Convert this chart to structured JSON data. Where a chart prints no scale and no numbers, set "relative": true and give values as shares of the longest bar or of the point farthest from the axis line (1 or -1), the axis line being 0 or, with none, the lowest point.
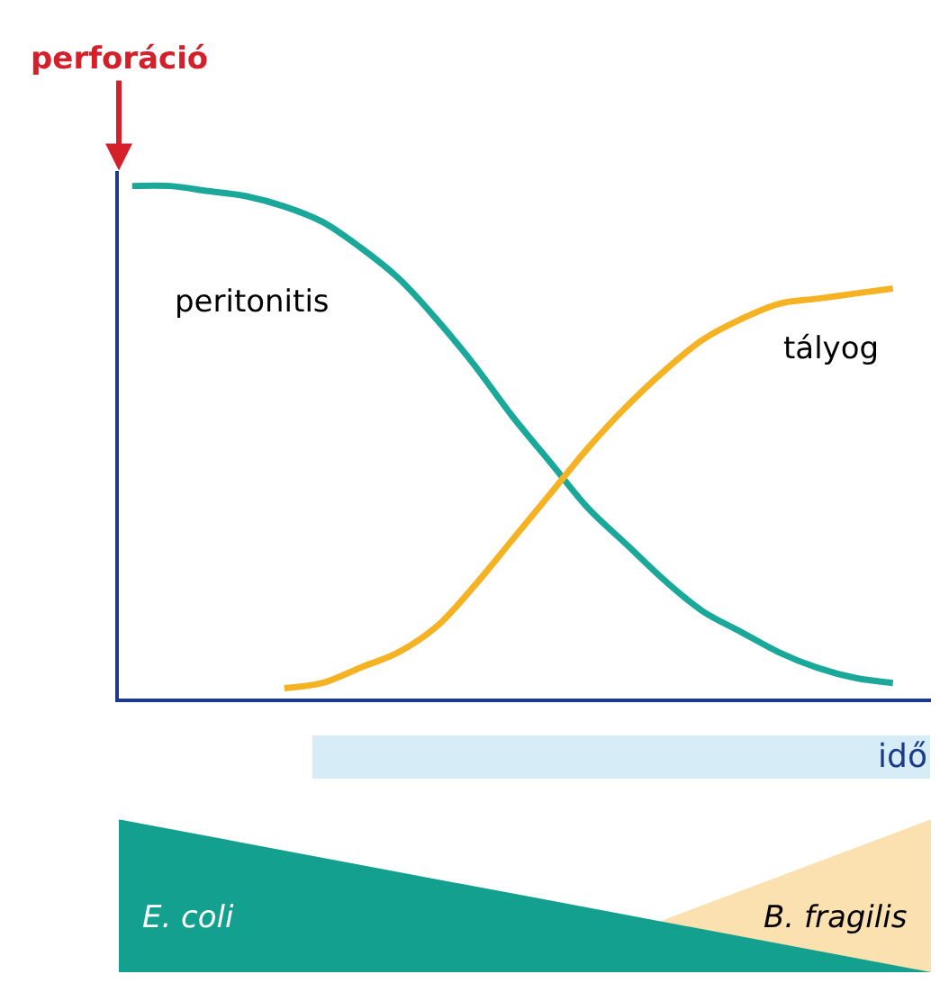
{
  "chart_data": [
    {
      "type": "line",
      "relative": true,
      "xlabel": "idő",
      "annotations": [
        "perforáció"
      ],
      "categories": [
        null,
        null,
        null,
        null,
        null,
        null,
        null,
        null,
        null,
        null,
        null,
        null,
        null,
        null,
        null,
        null,
        null,
        null,
        null,
        null,
        null
      ],
      "marker": "none",
      "line_style": "solid",
      "legend": false,
      "series": [
        {
          "name": "peritonitis",
          "color": "#1aa89a",
          "values": [
            1.0,
            1.0,
            0.99,
            0.98,
            0.96,
            0.93,
            0.88,
            0.82,
            0.74,
            0.65,
            0.55,
            0.46,
            0.37,
            0.3,
            0.23,
            0.17,
            0.13,
            0.09,
            0.06,
            0.04,
            0.03
          ]
        },
        {
          "name": "tályog",
          "color": "#f5b324",
          "values": [
            null,
            null,
            null,
            null,
            0.02,
            0.03,
            0.06,
            0.09,
            0.14,
            0.22,
            0.31,
            0.4,
            0.49,
            0.57,
            0.64,
            0.7,
            0.74,
            0.77,
            0.78,
            0.79,
            0.8
          ]
        }
      ]
    },
    {
      "type": "area",
      "relative": true,
      "categories": [
        null,
        null,
        null
      ],
      "legend": false,
      "series": [
        {
          "name": "B. fragilis",
          "color": "#fbe0b0",
          "values": [
            null,
            0,
            1
          ]
        },
        {
          "name": "E. coli",
          "color": "#13a08f",
          "values": [
            1,
            0.5,
            0
          ]
        }
      ]
    }
  ]
}
